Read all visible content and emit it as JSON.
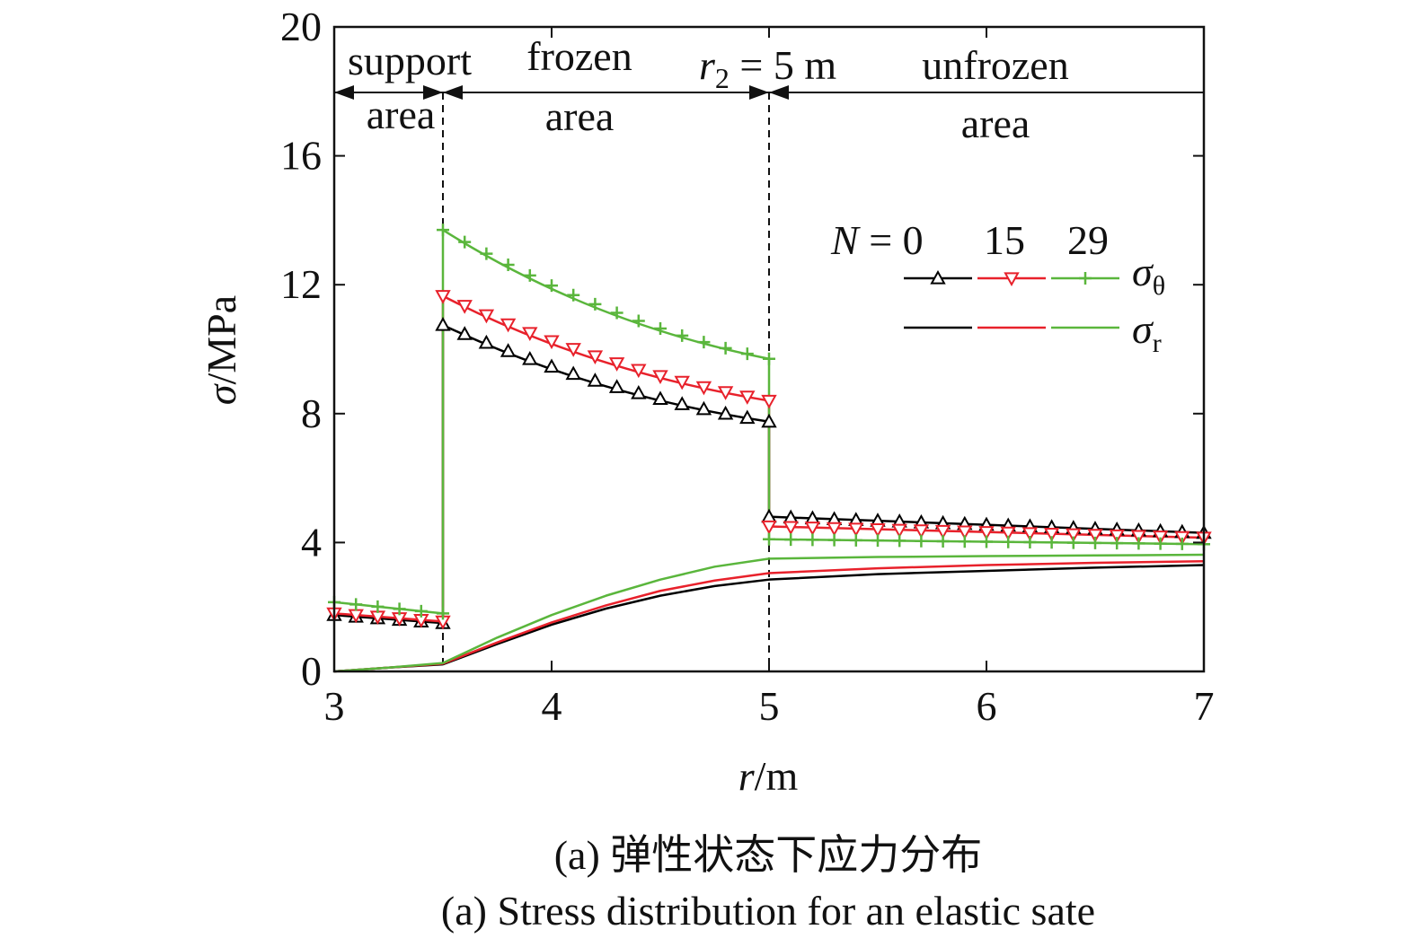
{
  "chart_data": {
    "type": "line",
    "xlabel": "r/m",
    "ylabel": "σ/MPa",
    "xlim": [
      3,
      7
    ],
    "ylim": [
      0,
      20
    ],
    "xticks": [
      3,
      4,
      5,
      6,
      7
    ],
    "yticks": [
      0,
      4,
      8,
      12,
      16,
      20
    ],
    "grid": false,
    "boundaries": [
      3.5,
      5
    ],
    "regions": [
      {
        "line1": "support",
        "line2": "area"
      },
      {
        "line1": "frozen",
        "line2": "area"
      },
      {
        "line1": "unfrozen",
        "line2": "area"
      }
    ],
    "boundary_label": {
      "var": "r",
      "sub": "2",
      "rest": " = 5 m"
    },
    "legend": {
      "position": "top-right",
      "n_label": "N = 0",
      "n_values": [
        "15",
        "29"
      ],
      "sigma": "σ",
      "theta_sub": "θ",
      "r_sub": "r"
    },
    "colors": {
      "N0": "#000000",
      "N15": "#e8212b",
      "N29": "#5ab63c"
    },
    "series": [
      {
        "stress": "sigma_theta",
        "N": 0,
        "color": "#000000",
        "marker": "triangle-up",
        "x": [
          3.0,
          3.5,
          3.5,
          5.0,
          5.0,
          7.0
        ],
        "y": [
          1.75,
          1.5,
          10.75,
          7.75,
          4.8,
          4.3
        ]
      },
      {
        "stress": "sigma_theta",
        "N": 15,
        "color": "#e8212b",
        "marker": "triangle-down",
        "x": [
          3.0,
          3.5,
          3.5,
          5.0,
          5.0,
          7.0
        ],
        "y": [
          1.8,
          1.55,
          11.65,
          8.4,
          4.5,
          4.15
        ]
      },
      {
        "stress": "sigma_theta",
        "N": 29,
        "color": "#5ab63c",
        "marker": "plus",
        "x": [
          3.0,
          3.5,
          3.5,
          5.0,
          5.0,
          7.0
        ],
        "y": [
          2.15,
          1.8,
          13.7,
          9.7,
          4.1,
          3.95
        ]
      },
      {
        "stress": "sigma_r",
        "N": 0,
        "color": "#000000",
        "x": [
          3.0,
          3.25,
          3.5,
          3.75,
          4.0,
          4.25,
          4.5,
          4.75,
          5.0,
          5.5,
          6.0,
          6.5,
          7.0
        ],
        "y": [
          0.0,
          0.12,
          0.22,
          0.85,
          1.45,
          1.95,
          2.35,
          2.65,
          2.85,
          3.02,
          3.12,
          3.22,
          3.3
        ]
      },
      {
        "stress": "sigma_r",
        "N": 15,
        "color": "#e8212b",
        "x": [
          3.0,
          3.25,
          3.5,
          3.75,
          4.0,
          4.25,
          4.5,
          4.75,
          5.0,
          5.5,
          6.0,
          6.5,
          7.0
        ],
        "y": [
          0.0,
          0.12,
          0.24,
          0.9,
          1.52,
          2.05,
          2.5,
          2.82,
          3.05,
          3.2,
          3.3,
          3.37,
          3.42
        ]
      },
      {
        "stress": "sigma_r",
        "N": 29,
        "color": "#5ab63c",
        "x": [
          3.0,
          3.25,
          3.5,
          3.75,
          4.0,
          4.25,
          4.5,
          4.75,
          5.0,
          5.5,
          6.0,
          6.5,
          7.0
        ],
        "y": [
          0.0,
          0.12,
          0.26,
          1.05,
          1.75,
          2.35,
          2.85,
          3.25,
          3.5,
          3.55,
          3.58,
          3.6,
          3.62
        ]
      }
    ]
  },
  "caption": {
    "line_cn": "(a) 弹性状态下应力分布",
    "line_en": "(a) Stress distribution for an elastic sate"
  }
}
